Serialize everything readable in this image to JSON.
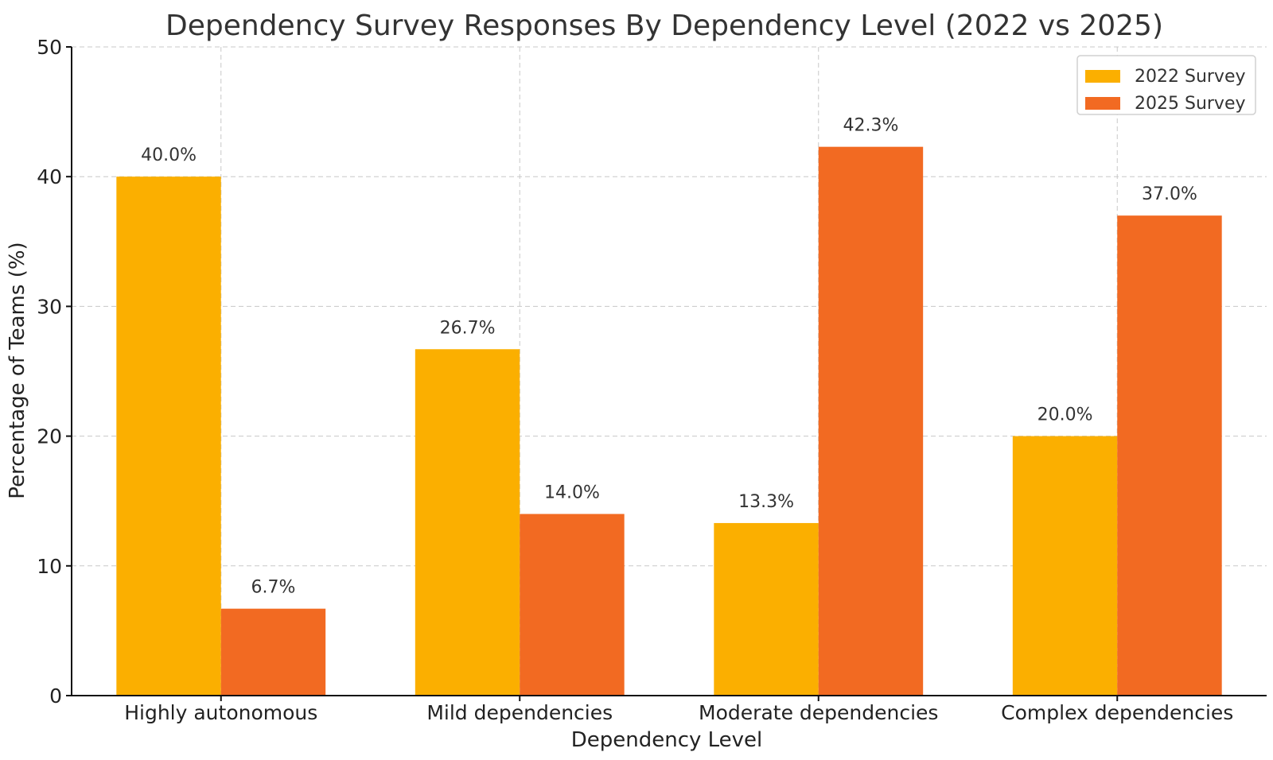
{
  "chart_data": {
    "type": "bar",
    "title": "Dependency Survey Responses By Dependency Level (2022 vs 2025)",
    "xlabel": "Dependency Level",
    "ylabel": "Percentage of Teams (%)",
    "ylim": [
      0,
      50
    ],
    "yticks": [
      0,
      10,
      20,
      30,
      40,
      50
    ],
    "grid": true,
    "legend_position": "top-right",
    "categories": [
      "Highly autonomous",
      "Mild dependencies",
      "Moderate dependencies",
      "Complex dependencies"
    ],
    "series": [
      {
        "name": "2022 Survey",
        "color": "#FBAF00",
        "values": [
          40.0,
          26.7,
          13.3,
          20.0
        ],
        "labels": [
          "40.0%",
          "26.7%",
          "13.3%",
          "20.0%"
        ]
      },
      {
        "name": "2025 Survey",
        "color": "#F26A22",
        "values": [
          6.7,
          14.0,
          42.3,
          37.0
        ],
        "labels": [
          "6.7%",
          "14.0%",
          "42.3%",
          "37.0%"
        ]
      }
    ]
  }
}
